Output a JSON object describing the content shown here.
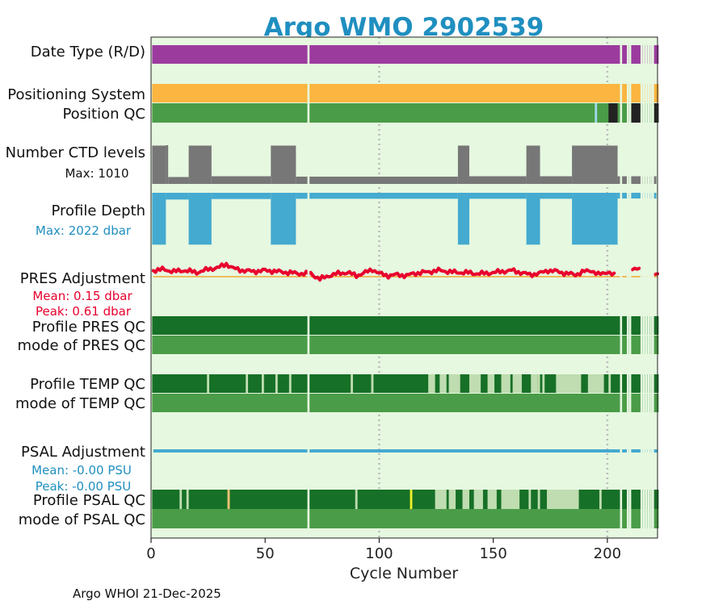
{
  "title": "Argo WMO 2902539",
  "footer": "Argo WHOI 21-Dec-2025",
  "colors": {
    "title": "#1f8fc0",
    "panel_bg": "#e6f8e0",
    "data_type": "#9b3b9e",
    "positioning": "#fbb540",
    "position_qc": "#4a9c48",
    "ctd": "#777777",
    "depth": "#44aad0",
    "pres_line": "#e8002d",
    "pres_ref": "#f0a830",
    "qc_dark": "#177027",
    "qc_mode": "#4a9c48",
    "qc_light": "#bfddb0",
    "psal_line": "#44aad0",
    "psal_yellow": "#f2f22a",
    "psal_orange": "#f0c070",
    "position_light": "#a0d8e8",
    "position_black": "#222222",
    "grid": "#bbbbbb"
  },
  "row_labels": {
    "data_type": "Date Type (R/D)",
    "positioning": "Positioning System",
    "position_qc": "Position QC",
    "ctd": "Number CTD levels",
    "ctd_max": "Max: 1010",
    "depth": "Profile Depth",
    "depth_max": "Max: 2022 dbar",
    "pres_adj": "PRES Adjustment",
    "pres_mean": "Mean: 0.15 dbar",
    "pres_peak": "Peak: 0.61 dbar",
    "pres_qc": "Profile PRES QC",
    "pres_mode": "mode of PRES QC",
    "temp_qc": "Profile TEMP QC",
    "temp_mode": "mode of TEMP QC",
    "psal_adj": "PSAL Adjustment",
    "psal_mean": "Mean: -0.00 PSU",
    "psal_peak": "Peak: -0.00 PSU",
    "psal_qc": "Profile PSAL QC",
    "psal_mode": "mode of PSAL QC"
  },
  "chart_data": {
    "type": "bar",
    "title": "Argo WMO 2902539",
    "xlabel": "Cycle Number",
    "ylabel": "",
    "xlim": [
      0,
      222
    ],
    "x_ticks": [
      0,
      50,
      100,
      150,
      200
    ],
    "x_tick_labels": [
      "0",
      "50",
      "100",
      "150",
      "200"
    ],
    "vertical_gridlines": [
      100,
      200
    ],
    "last_cycle": 222,
    "missing_cycles": [
      69,
      206,
      209,
      210,
      215,
      216,
      217,
      218,
      219,
      220
    ],
    "pres_missing_cycles": [
      204,
      205,
      206,
      207,
      208,
      209,
      210,
      215,
      216,
      217,
      218,
      219,
      220
    ],
    "ctd_max": 1010,
    "depth_max_dbar": 2022,
    "ctd_levels_segments": [
      {
        "from": 1,
        "to": 7,
        "value": 1000
      },
      {
        "from": 7,
        "to": 8,
        "value": 1010
      },
      {
        "from": 8,
        "to": 17,
        "value": 180
      },
      {
        "from": 17,
        "to": 27,
        "value": 1000
      },
      {
        "from": 27,
        "to": 53,
        "value": 200
      },
      {
        "from": 53,
        "to": 64,
        "value": 1000
      },
      {
        "from": 64,
        "to": 135,
        "value": 190
      },
      {
        "from": 135,
        "to": 140,
        "value": 1000
      },
      {
        "from": 140,
        "to": 165,
        "value": 200
      },
      {
        "from": 165,
        "to": 171,
        "value": 1000
      },
      {
        "from": 171,
        "to": 185,
        "value": 200
      },
      {
        "from": 185,
        "to": 205,
        "value": 1000
      },
      {
        "from": 205,
        "to": 222,
        "value": 200
      }
    ],
    "profile_depth_segments": [
      {
        "from": 1,
        "to": 7,
        "value": 2000
      },
      {
        "from": 7,
        "to": 17,
        "value": 260
      },
      {
        "from": 17,
        "to": 27,
        "value": 2000
      },
      {
        "from": 27,
        "to": 53,
        "value": 240
      },
      {
        "from": 53,
        "to": 64,
        "value": 2000
      },
      {
        "from": 64,
        "to": 135,
        "value": 230
      },
      {
        "from": 135,
        "to": 140,
        "value": 2000
      },
      {
        "from": 140,
        "to": 165,
        "value": 230
      },
      {
        "from": 165,
        "to": 171,
        "value": 2000
      },
      {
        "from": 171,
        "to": 185,
        "value": 230
      },
      {
        "from": 185,
        "to": 205,
        "value": 2000
      },
      {
        "from": 205,
        "to": 222,
        "value": 220
      }
    ],
    "pres_adjustment_keypoints": [
      [
        1,
        0.3
      ],
      [
        5,
        0.35
      ],
      [
        10,
        0.25
      ],
      [
        15,
        0.3
      ],
      [
        20,
        0.2
      ],
      [
        25,
        0.35
      ],
      [
        30,
        0.45
      ],
      [
        33,
        0.61
      ],
      [
        36,
        0.4
      ],
      [
        40,
        0.3
      ],
      [
        45,
        0.25
      ],
      [
        50,
        0.3
      ],
      [
        55,
        0.25
      ],
      [
        60,
        0.2
      ],
      [
        65,
        0.15
      ],
      [
        70,
        0.15
      ],
      [
        74,
        -0.12
      ],
      [
        78,
        0.05
      ],
      [
        82,
        0.15
      ],
      [
        86,
        0.2
      ],
      [
        90,
        0.05
      ],
      [
        94,
        0.2
      ],
      [
        97,
        0.35
      ],
      [
        100,
        0.15
      ],
      [
        104,
        0.05
      ],
      [
        108,
        0.1
      ],
      [
        112,
        0.05
      ],
      [
        115,
        0.15
      ],
      [
        119,
        0.2
      ],
      [
        123,
        0.25
      ],
      [
        126,
        0.3
      ],
      [
        130,
        0.25
      ],
      [
        134,
        0.2
      ],
      [
        138,
        0.2
      ],
      [
        142,
        0.15
      ],
      [
        146,
        0.15
      ],
      [
        150,
        0.2
      ],
      [
        154,
        0.25
      ],
      [
        158,
        0.3
      ],
      [
        162,
        0.2
      ],
      [
        166,
        0.1
      ],
      [
        170,
        0.15
      ],
      [
        174,
        0.3
      ],
      [
        178,
        0.25
      ],
      [
        182,
        0.15
      ],
      [
        186,
        0.1
      ],
      [
        190,
        0.25
      ],
      [
        193,
        0.3
      ],
      [
        196,
        0.1
      ],
      [
        198,
        0.15
      ],
      [
        200,
        0.25
      ],
      [
        203,
        0.05
      ],
      [
        211,
        0.4
      ],
      [
        214,
        0.42
      ],
      [
        222,
        0.05
      ]
    ],
    "pres_qc": {
      "profile": [
        {
          "from": 1,
          "to": 222,
          "grade": "A"
        }
      ],
      "mode": [
        {
          "from": 1,
          "to": 222,
          "qc": 1
        }
      ]
    },
    "temp_qc_light_segments": [
      [
        25,
        25
      ],
      [
        42,
        42
      ],
      [
        49,
        49
      ],
      [
        55,
        55
      ],
      [
        61,
        61
      ],
      [
        88,
        88
      ],
      [
        97,
        97
      ],
      [
        122,
        124
      ],
      [
        127,
        129
      ],
      [
        131,
        135
      ],
      [
        140,
        144
      ],
      [
        148,
        150
      ],
      [
        154,
        157
      ],
      [
        159,
        162
      ],
      [
        167,
        169
      ],
      [
        170,
        170
      ],
      [
        172,
        172
      ],
      [
        178,
        188
      ],
      [
        192,
        198
      ],
      [
        201,
        201
      ]
    ],
    "psal_qc_light_segments": [
      [
        13,
        13
      ],
      [
        16,
        16
      ],
      [
        34,
        34
      ],
      [
        90,
        90
      ],
      [
        125,
        129
      ],
      [
        131,
        133
      ],
      [
        137,
        139
      ],
      [
        142,
        145
      ],
      [
        148,
        151
      ],
      [
        154,
        161
      ],
      [
        166,
        166
      ],
      [
        170,
        170
      ],
      [
        174,
        187
      ],
      [
        197,
        197
      ]
    ],
    "psal_qc_special": [
      {
        "cycle": 114,
        "color": "yellow"
      },
      {
        "cycle": 34,
        "color": "orange"
      }
    ],
    "psal_adjustment": {
      "mean": -0.0,
      "peak": -0.0,
      "units": "PSU"
    }
  }
}
